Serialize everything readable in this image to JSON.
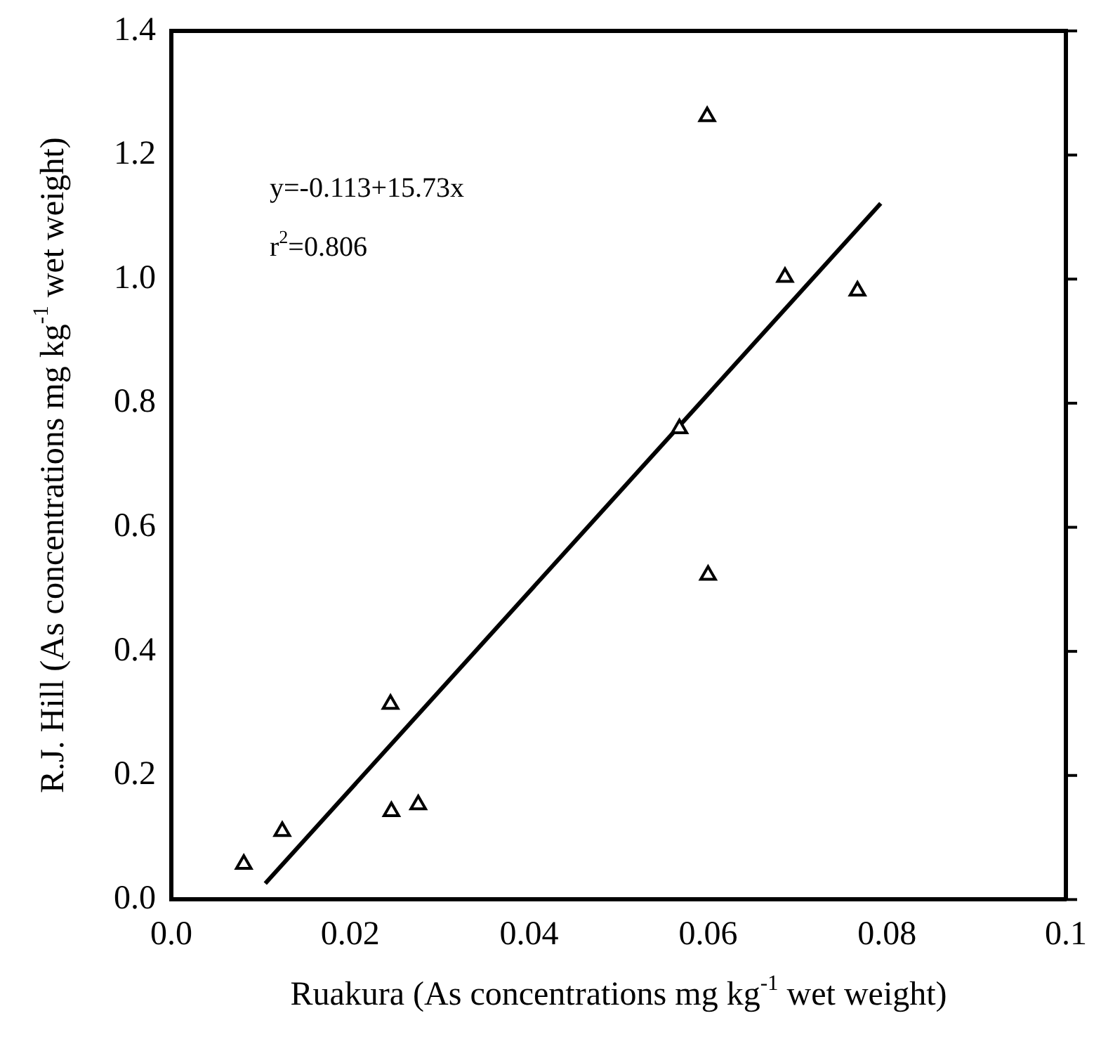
{
  "chart_data": {
    "type": "scatter",
    "xlabel": "Ruakura (As concentrations mg kg$^{-1}$ wet weight)",
    "ylabel": "R.J. Hill (As concentrations mg kg$^{-1}$ wet weight)",
    "annotations": [
      "y=-0.113+15.73x",
      "r$^{2}$=0.806"
    ],
    "series": [
      {
        "type": "scatter",
        "color": "#000000",
        "marker": "triangle",
        "x": [
          0.0081,
          0.0124,
          0.0245,
          0.0246,
          0.0276,
          0.0568,
          0.0599,
          0.06,
          0.0686,
          0.0767
        ],
        "values": [
          0.057,
          0.11,
          0.315,
          0.142,
          0.153,
          0.759,
          1.262,
          0.523,
          1.003,
          0.981
        ]
      },
      {
        "type": "line",
        "color": "#000000",
        "marker": "none",
        "x": [
          0.0105,
          0.0793
        ],
        "values": [
          0.026,
          1.122
        ]
      }
    ],
    "xlim": [
      0,
      0.1
    ],
    "xticks": [
      {
        "value": 0,
        "label": "0.0"
      },
      0.02,
      0.04,
      0.06,
      0.08,
      0.1
    ],
    "ylim": [
      0,
      1.4
    ],
    "yticks": [
      {
        "value": 0,
        "label": "0.0"
      },
      0.2,
      0.4,
      0.6,
      0.8,
      {
        "value": 1,
        "label": "1.0"
      },
      1.2,
      1.4
    ],
    "grid": false,
    "legend": false
  }
}
